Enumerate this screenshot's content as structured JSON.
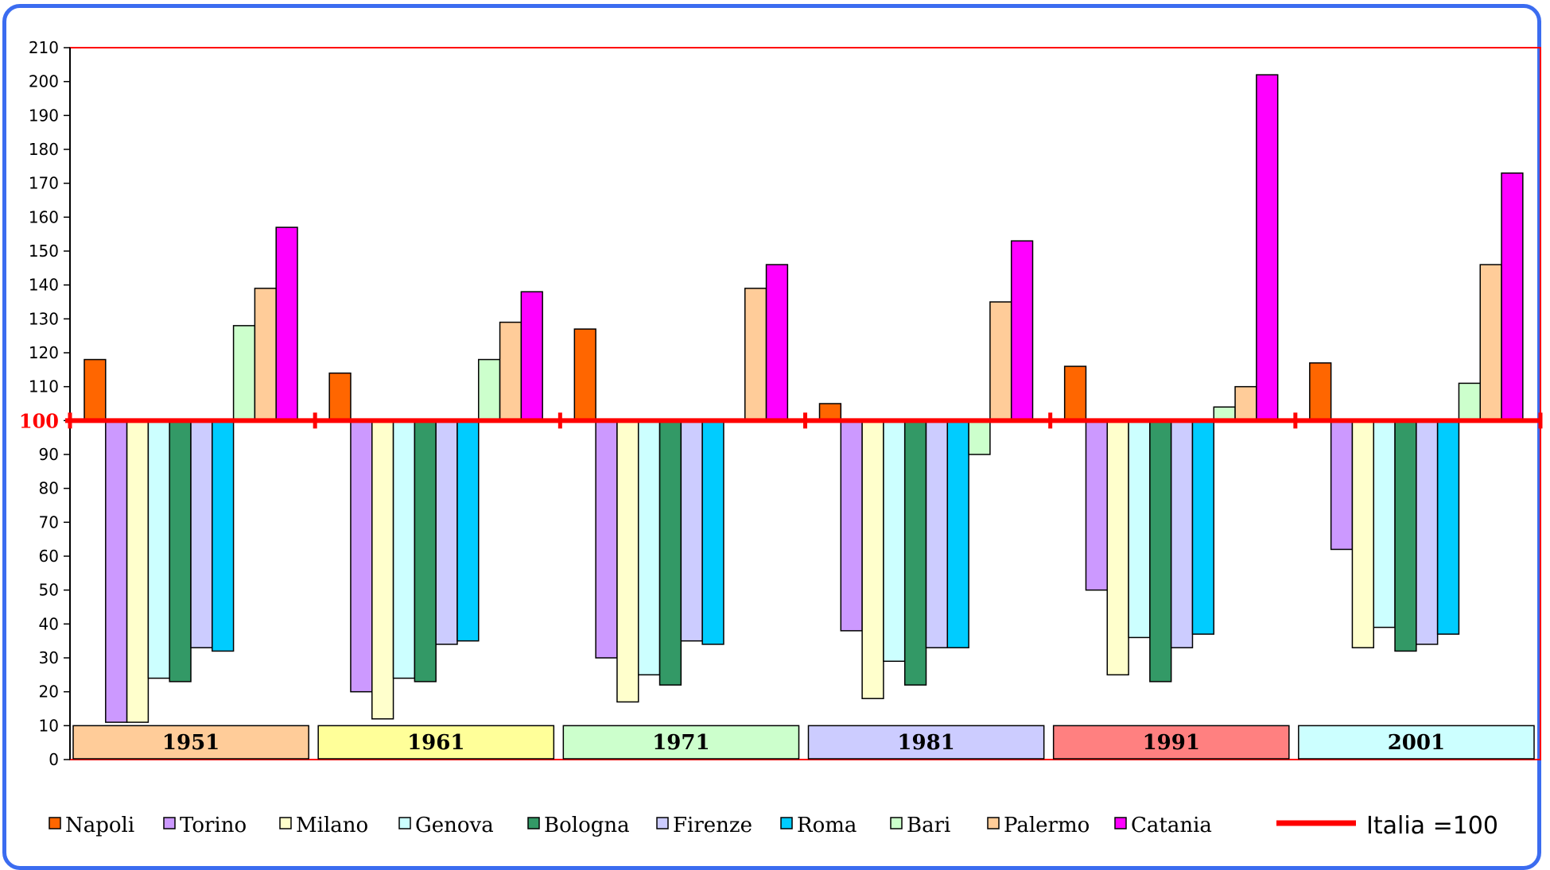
{
  "chart_data": {
    "type": "bar",
    "title": "",
    "xlabel": "",
    "ylabel": "",
    "ylim": [
      0,
      210
    ],
    "baseline": 100,
    "yticks": [
      0,
      10,
      20,
      30,
      40,
      50,
      60,
      70,
      80,
      90,
      100,
      110,
      120,
      130,
      140,
      150,
      160,
      170,
      180,
      190,
      200,
      210
    ],
    "categories": [
      "1951",
      "1961",
      "1971",
      "1981",
      "1991",
      "2001"
    ],
    "category_colors": [
      "#ffcc99",
      "#ffff99",
      "#ccffcc",
      "#ccccff",
      "#ff8080",
      "#ccffff"
    ],
    "series": [
      {
        "name": "Napoli",
        "color": "#ff6600",
        "values": [
          118,
          114,
          127,
          105,
          116,
          117
        ]
      },
      {
        "name": "Torino",
        "color": "#cc99ff",
        "values": [
          11,
          20,
          30,
          38,
          50,
          62
        ]
      },
      {
        "name": "Milano",
        "color": "#ffffcc",
        "values": [
          11,
          12,
          17,
          18,
          25,
          33
        ]
      },
      {
        "name": "Genova",
        "color": "#ccffff",
        "values": [
          24,
          24,
          25,
          29,
          36,
          39
        ]
      },
      {
        "name": "Bologna",
        "color": "#339966",
        "values": [
          23,
          23,
          22,
          22,
          23,
          32
        ]
      },
      {
        "name": "Firenze",
        "color": "#ccccff",
        "values": [
          33,
          34,
          35,
          33,
          33,
          34
        ]
      },
      {
        "name": "Roma",
        "color": "#00ccff",
        "values": [
          32,
          35,
          34,
          33,
          37,
          37
        ]
      },
      {
        "name": "Bari",
        "color": "#ccffcc",
        "values": [
          128,
          118,
          100,
          90,
          104,
          111
        ]
      },
      {
        "name": "Palermo",
        "color": "#ffcc99",
        "values": [
          139,
          129,
          139,
          135,
          110,
          146
        ]
      },
      {
        "name": "Catania",
        "color": "#ff00ff",
        "values": [
          157,
          138,
          146,
          153,
          202,
          173
        ]
      }
    ],
    "reference_line": {
      "label": "Italia =100",
      "value": 100,
      "color": "#ff0000"
    },
    "reference_tick_label": "100",
    "legend_position": "bottom",
    "grid": false
  }
}
